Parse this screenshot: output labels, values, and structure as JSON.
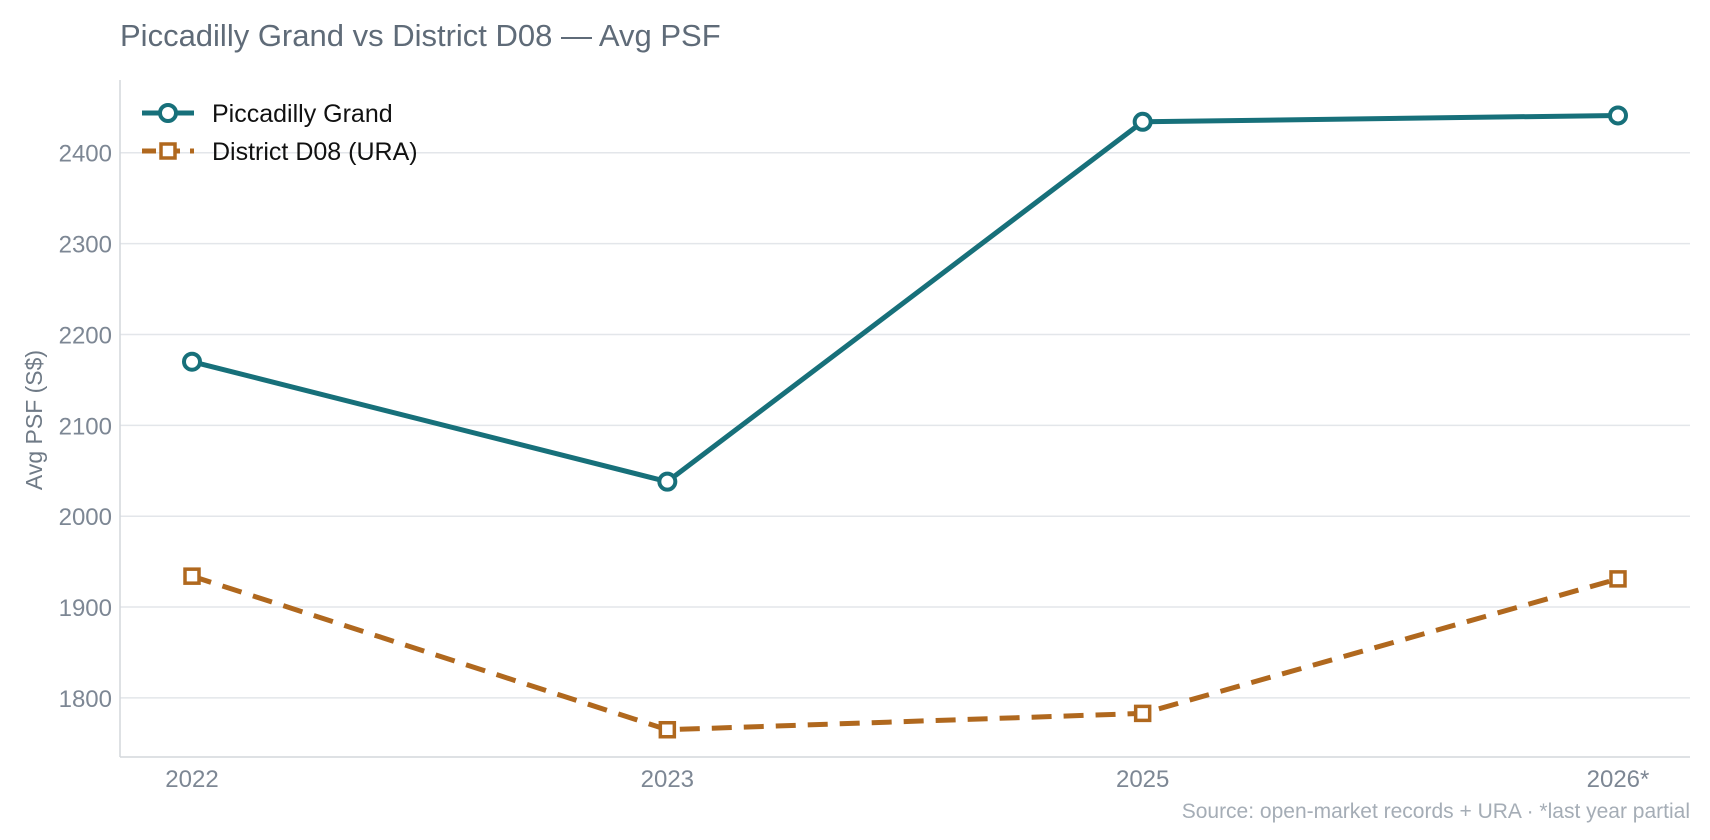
{
  "chart_data": {
    "type": "line",
    "title": "Piccadilly Grand vs District D08 — Avg PSF",
    "xlabel": "",
    "ylabel": "Avg PSF (S$)",
    "categories": [
      "2022",
      "2023",
      "2025",
      "2026*"
    ],
    "yticks": [
      1800,
      1900,
      2000,
      2100,
      2200,
      2300,
      2400
    ],
    "ylim": [
      1735,
      2480
    ],
    "grid": "horizontal",
    "legend_position": "top-left",
    "series": [
      {
        "name": "Piccadilly Grand",
        "values": [
          2170,
          2038,
          2434,
          2441
        ],
        "color": "#17707a",
        "line_style": "solid",
        "marker": "circle"
      },
      {
        "name": "District D08 (URA)",
        "values": [
          1934,
          1765,
          1783,
          1931
        ],
        "color": "#b0681e",
        "line_style": "dashed",
        "marker": "square"
      }
    ],
    "source_note": "Source: open-market records + URA · *last year partial"
  }
}
